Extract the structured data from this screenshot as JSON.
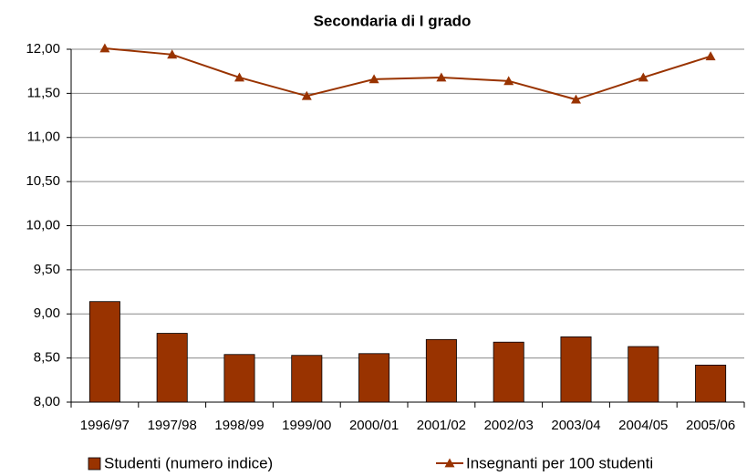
{
  "chart_data": {
    "type": "bar",
    "title": "Secondaria di I grado",
    "categories": [
      "1996/97",
      "1997/98",
      "1998/99",
      "1999/00",
      "2000/01",
      "2001/02",
      "2002/03",
      "2003/04",
      "2004/05",
      "2005/06"
    ],
    "series": [
      {
        "name": "Studenti (numero indice)",
        "type": "bar",
        "color": "#993300",
        "values": [
          9.14,
          8.78,
          8.54,
          8.53,
          8.55,
          8.71,
          8.68,
          8.74,
          8.63,
          8.42
        ]
      },
      {
        "name": "Insegnanti per 100 studenti",
        "type": "line",
        "color": "#993300",
        "values": [
          12.01,
          11.94,
          11.68,
          11.47,
          11.66,
          11.68,
          11.64,
          11.43,
          11.68,
          11.92
        ]
      }
    ],
    "ylim": [
      8,
      12
    ],
    "yticks": [
      {
        "value": 8,
        "label": "8,00"
      },
      {
        "value": 8.5,
        "label": "8,50"
      },
      {
        "value": 9,
        "label": "9,00"
      },
      {
        "value": 9.5,
        "label": "9,50"
      },
      {
        "value": 10,
        "label": "10,00"
      },
      {
        "value": 10.5,
        "label": "10,50"
      },
      {
        "value": 11,
        "label": "11,00"
      },
      {
        "value": 11.5,
        "label": "11,50"
      },
      {
        "value": 12,
        "label": "12,00"
      }
    ],
    "grid": true
  }
}
